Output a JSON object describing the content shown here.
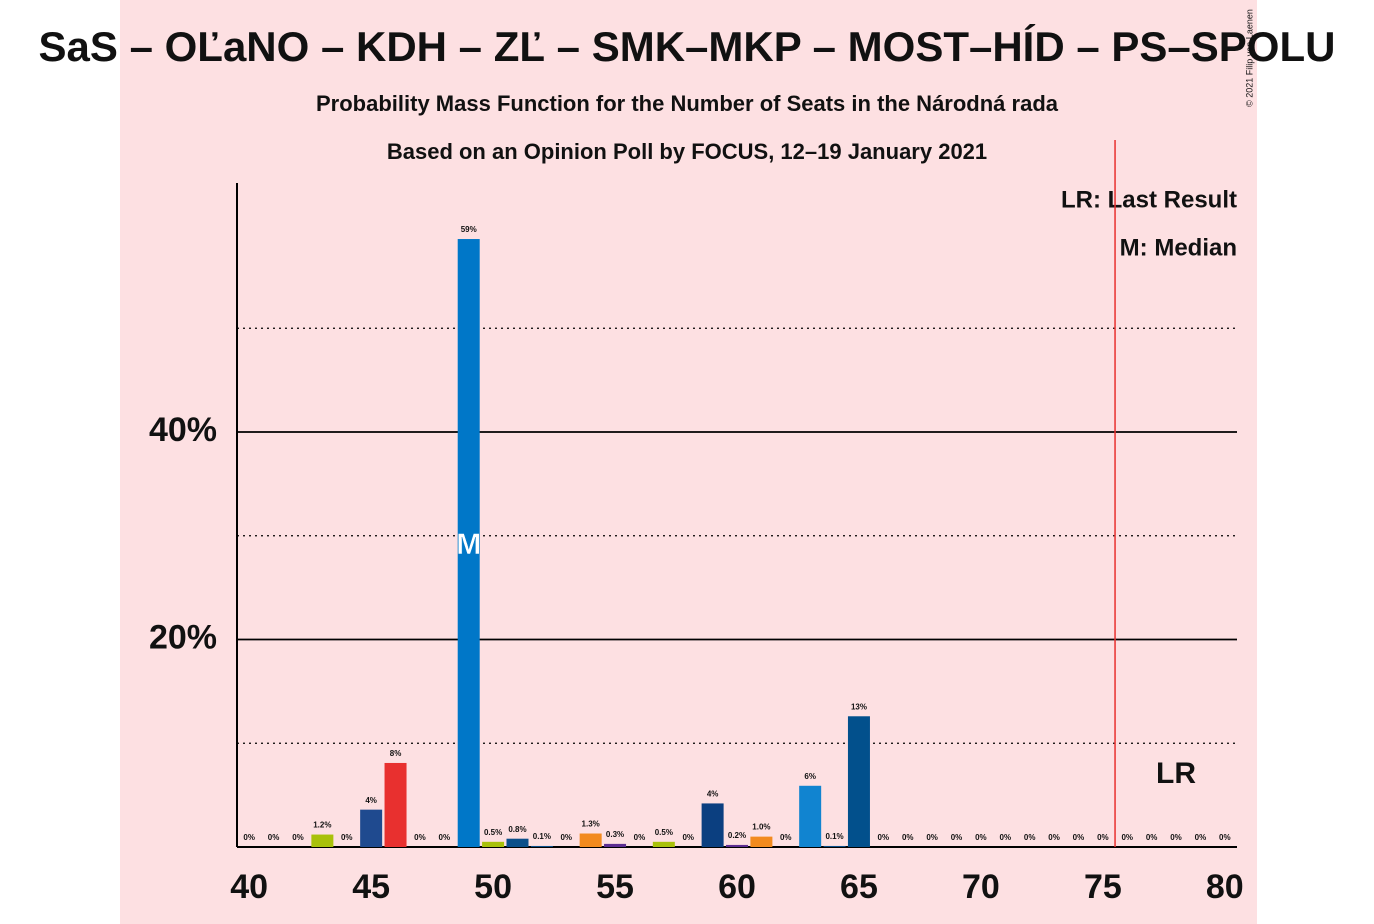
{
  "chart_data": {
    "type": "bar",
    "title": "SaS – OĽaNO – KDH – ZĽ – SMK–MKP – MOST–HÍD – PS–SPOLU",
    "subtitle": "Probability Mass Function for the Number of Seats in the Národná rada",
    "subtitle2": "Based on an Opinion Poll by FOCUS, 12–19 January 2021",
    "copyright": "© 2021 Filip van Laenen",
    "legend": [
      "LR: Last Result",
      "M: Median"
    ],
    "x": [
      40,
      41,
      42,
      43,
      44,
      45,
      46,
      47,
      48,
      49,
      50,
      51,
      52,
      53,
      54,
      55,
      56,
      57,
      58,
      59,
      60,
      61,
      62,
      63,
      64,
      65,
      66,
      67,
      68,
      69,
      70,
      71,
      72,
      73,
      74,
      75,
      76,
      77,
      78,
      79,
      80
    ],
    "values": [
      0,
      0,
      0,
      1.2,
      0,
      3.6,
      8.1,
      0,
      0,
      58.6,
      0.5,
      0.8,
      0.1,
      0,
      1.3,
      0.3,
      0,
      0.5,
      0,
      4.2,
      0.2,
      1.0,
      0,
      5.9,
      0.1,
      12.6,
      0,
      0,
      0,
      0,
      0,
      0,
      0,
      0,
      0,
      0,
      0,
      0,
      0,
      0,
      0
    ],
    "value_labels": [
      "0%",
      "0%",
      "0%",
      "1.2%",
      "0%",
      "4%",
      "8%",
      "0%",
      "0%",
      "59%",
      "0.5%",
      "0.8%",
      "0.1%",
      "0%",
      "1.3%",
      "0.3%",
      "0%",
      "0.5%",
      "0%",
      "4%",
      "0.2%",
      "1.0%",
      "0%",
      "6%",
      "0.1%",
      "13%",
      "0%",
      "0%",
      "0%",
      "0%",
      "0%",
      "0%",
      "0%",
      "0%",
      "0%",
      "0%",
      "0%",
      "0%",
      "0%",
      "0%",
      "0%"
    ],
    "colors": [
      "#0077c8",
      "#0077c8",
      "#0077c8",
      "#a9c10a",
      "#0077c8",
      "#1f4a8f",
      "#e8302f",
      "#0077c8",
      "#0077c8",
      "#0077c8",
      "#a9c10a",
      "#0b4f8a",
      "#0b4f8a",
      "#0077c8",
      "#f28a1e",
      "#5c2d91",
      "#0077c8",
      "#a9c10a",
      "#0077c8",
      "#0b3f80",
      "#5c2d91",
      "#f28a1e",
      "#0077c8",
      "#1184d0",
      "#0b4f8a",
      "#02508c",
      "#0077c8",
      "#0077c8",
      "#0077c8",
      "#0077c8",
      "#0077c8",
      "#0077c8",
      "#0077c8",
      "#0077c8",
      "#0077c8",
      "#0077c8",
      "#0077c8",
      "#0077c8",
      "#0077c8",
      "#0077c8",
      "#0077c8"
    ],
    "xlim": [
      39.5,
      80.5
    ],
    "xticks": [
      40,
      45,
      50,
      55,
      60,
      65,
      70,
      75,
      80
    ],
    "ylim": [
      0,
      64
    ],
    "yticks": [
      {
        "value": 20,
        "label": "20%"
      },
      {
        "value": 40,
        "label": "40%"
      }
    ],
    "minor_grid": [
      10,
      30,
      50
    ],
    "majority_line": 75.5,
    "median": {
      "value": 49,
      "label": "M"
    },
    "last_result": {
      "value": 78,
      "label": "LR"
    }
  }
}
